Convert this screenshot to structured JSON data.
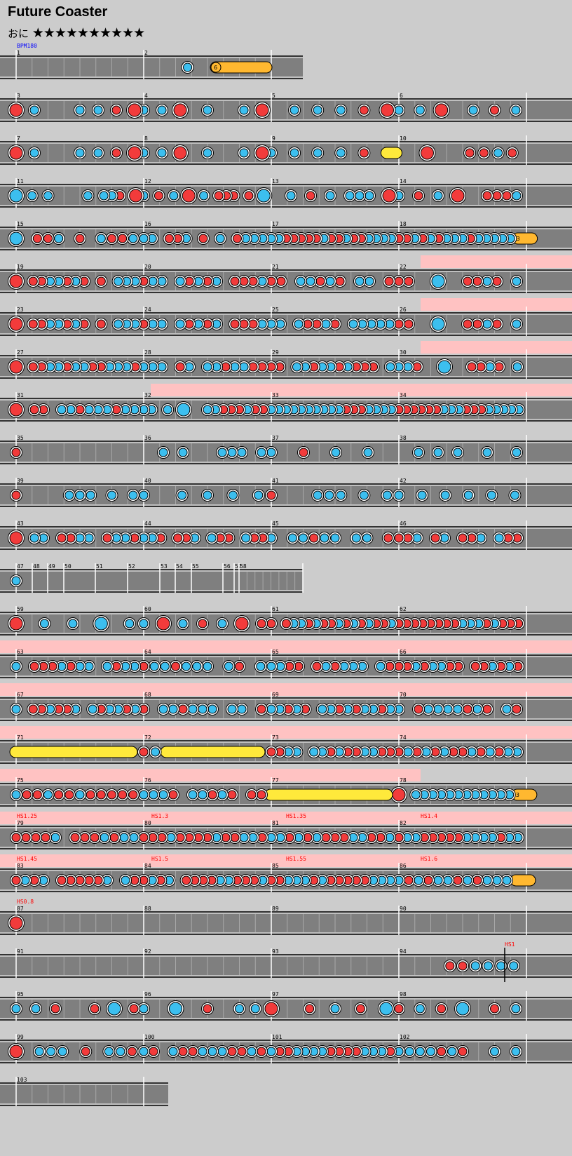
{
  "song": {
    "title": "Future Coaster",
    "course": "おに",
    "stars": "★★★★★★★★★★",
    "level": 10
  },
  "colors": {
    "background": "#cccccc",
    "lane": "#7f7f7f",
    "don": "#f23b3b",
    "ka": "#3cbfef",
    "roll": "#ffe93b",
    "balloon": "#ffb830",
    "gogo": "#ffc2c2",
    "scroll_event": "#ff0000",
    "bpm_event": "#0000ff"
  },
  "events": [
    {
      "row": 0,
      "text": "BPM180"
    },
    {
      "row": 18,
      "text": "HS1.25"
    },
    {
      "row": 18,
      "text": "HS1.3"
    },
    {
      "row": 18,
      "text": "HS1.35"
    },
    {
      "row": 18,
      "text": "HS1.4"
    },
    {
      "row": 19,
      "text": "HS1.45"
    },
    {
      "row": 19,
      "text": "HS1.5"
    },
    {
      "row": 19,
      "text": "HS1.55"
    },
    {
      "row": 19,
      "text": "HS1.6"
    },
    {
      "row": 20,
      "text": "HS0.8"
    },
    {
      "row": 21,
      "text": "HS1"
    }
  ],
  "balloon_hits": [
    "6",
    "3",
    "3"
  ],
  "rows": [
    {
      "measures": [
        "1",
        "2"
      ],
      "pattern": [
        "",
        "           S                    "
      ]
    },
    {
      "measures": [
        "3",
        "4",
        "5",
        "6"
      ],
      "pattern": [
        "D k    k k d D",
        "k k D  k   k D",
        "  k k k d D",
        "k k D  k d k"
      ]
    },
    {
      "measures": [
        "7",
        "8",
        "9",
        "10"
      ],
      "pattern": [
        "D k    k k d D",
        "k k D  k   k D",
        "k k k k d R",
        "  D  ddkd"
      ]
    },
    {
      "measures": [
        "11",
        "12",
        "13",
        "14"
      ],
      "pattern": [
        "K k k    k kkd D",
        "k d k D k ddd d K",
        "  k d k kkk D",
        "k d k D  dddk"
      ]
    },
    {
      "measures": [
        "15",
        "16",
        "17",
        "18"
      ],
      "pattern": [
        "K ddk d kddk",
        "kk ddk d k dkkk",
        "kkdddddkddkddkkkk",
        "ddkdkdkkkdkkkkkB"
      ]
    },
    {
      "measures": [
        "19",
        "20",
        "21",
        "22"
      ],
      "pattern": [
        "D ddkkdkd d kkk",
        "dkk kdkdk dddk",
        "dd kkdkd kk d",
        "dd  K  ddkd k"
      ]
    },
    {
      "measures": [
        "23",
        "24",
        "25",
        "26"
      ],
      "pattern": [
        "D ddkkdkd d kkk",
        "dkk kdkdk dddk",
        "kk kddkd kkkkk",
        "dd  K  ddkd k"
      ]
    },
    {
      "measures": [
        "27",
        "28",
        "29",
        "30"
      ],
      "pattern": [
        "D ddkkdkkddkkkd",
        "kkk dk kkdkkdd",
        "dd kkdkkdkddd k",
        "kkd  K  ddkd k"
      ]
    },
    {
      "measures": [
        "31",
        "32",
        "33",
        "34"
      ],
      "pattern": [
        "D dd kkdkkkdkk",
        "kk k K  kkdddkdd",
        "kkkkkkkkkkdddkkkk",
        "ddddddkkkdddkkkkk"
      ]
    },
    {
      "measures": [
        "35",
        "36",
        "37",
        "38"
      ],
      "pattern": [
        "d",
        "  k k   kkk k",
        "k d k k",
        "  k k k  k  k"
      ]
    },
    {
      "measures": [
        "39",
        "40",
        "41",
        "42"
      ],
      "pattern": [
        "d    kkk k k",
        "k  k k k k",
        "d   kkk k k",
        "k k k k k k"
      ]
    },
    {
      "measures": [
        "43",
        "44",
        "45",
        "46"
      ],
      "pattern": [
        "D kk ddkk dkkd",
        "kkd ddk kdd kdd",
        "k kkdkk kk d",
        "ddk dk ddk kdd"
      ]
    },
    {
      "measures": [
        "47",
        "48",
        "49",
        "50",
        "51",
        "52",
        "53",
        "54",
        "55",
        "56",
        "57",
        "58"
      ],
      "pattern": [
        "k",
        "",
        "",
        "",
        "",
        "",
        "",
        "",
        "",
        "",
        "",
        ""
      ]
    },
    {
      "measures": [
        "59",
        "60",
        "61",
        "62"
      ],
      "pattern": [
        "D k k K k",
        "k D k d k D d",
        "d dkkdkddkdkdkddk",
        "ddddddddkkkdkddd"
      ]
    },
    {
      "measures": [
        "63",
        "64",
        "65",
        "66"
      ],
      "pattern": [
        "k dddkdkk kdkk",
        "dkkdkkk kd k",
        "kkdd dkdkkk kd",
        "ddkdkkdd ddkdkd"
      ]
    },
    {
      "measures": [
        "67",
        "68",
        "69",
        "70"
      ],
      "pattern": [
        "k ddkddk kdkkdk",
        "d kkdkkk kk d",
        "kkdkd kkdkdkkdk",
        "k dkkkkdkd kd"
      ]
    },
    {
      "measures": [
        "71",
        "72",
        "73",
        "74"
      ],
      "pattern": [
        "Rrrrrrrrrr",
        "dkRrrrrrrrr",
        "ddkk kkdkddkkdd",
        "dkdkdkddkdkdkk"
      ]
    },
    {
      "measures": [
        "75",
        "76",
        "77",
        "78"
      ],
      "pattern": [
        "kddkddkddddd",
        "kkkd kkdkd dd",
        "Rrrrrrrrrrrr",
        "D kkkkkkkkkkkkB"
      ]
    },
    {
      "measures": [
        "79",
        "80",
        "81",
        "82"
      ],
      "pattern": [
        "ddddk dddkdkk",
        "dddkddddkddkkd",
        "kkdkdkdddkkddk",
        "dkkdddddkkkkdkk"
      ]
    },
    {
      "measures": [
        "83",
        "84",
        "85",
        "86"
      ],
      "pattern": [
        "dkdk dddddk kd",
        "dkdk ddddkkdddk",
        "ddkkkdkdddddkkk",
        "kdkdkkdkdkkkB"
      ]
    },
    {
      "measures": [
        "87",
        "88",
        "89",
        "90"
      ],
      "pattern": [
        "D",
        "",
        "",
        ""
      ]
    },
    {
      "measures": [
        "91",
        "92",
        "93",
        "94"
      ],
      "pattern": [
        "",
        "",
        "",
        "    ddkkkk"
      ]
    },
    {
      "measures": [
        "95",
        "96",
        "97",
        "98"
      ],
      "pattern": [
        "k k d   d K d",
        "k K d kk",
        "D  d k d K",
        "d k d K  d k"
      ]
    },
    {
      "measures": [
        "99",
        "100",
        "101",
        "102"
      ],
      "pattern": [
        "D kkk d kkd",
        "kd kddkkkddkd",
        "kddkkkkddddkkkd",
        "kkkkdkd  k k"
      ]
    },
    {
      "measures": [
        "103"
      ],
      "pattern": [
        ""
      ]
    }
  ]
}
